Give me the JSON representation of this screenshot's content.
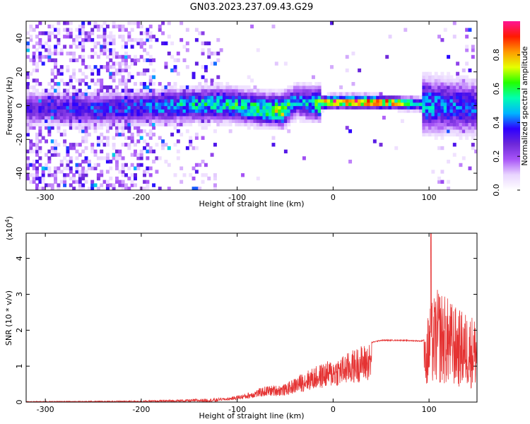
{
  "title": "GN03.2023.237.09.43.G29",
  "chart_data": [
    {
      "type": "heatmap",
      "xlabel": "Height of straight line (km)",
      "ylabel": "Frequency (Hz)",
      "xlim": [
        -320,
        150
      ],
      "ylim": [
        -50,
        50
      ],
      "x_ticks": [
        -300,
        -200,
        -100,
        0,
        100
      ],
      "y_ticks": [
        -40,
        -20,
        0,
        20,
        40
      ],
      "colorbar": {
        "label": "Normalized spectral amplitude",
        "range": [
          0,
          1
        ],
        "ticks": [
          "0.0",
          "0.2",
          "0.4",
          "0.6",
          "0.8"
        ],
        "colors": [
          "#ffffff",
          "#e9d5ff",
          "#a855f7",
          "#6d28d9",
          "#2d00ff",
          "#00b4ff",
          "#00ffb0",
          "#22ff00",
          "#e6ff00",
          "#ff9a00",
          "#ff1a00",
          "#ff1493"
        ]
      },
      "ridge": [
        {
          "x": -310,
          "f": -2,
          "a": 0.35
        },
        {
          "x": -250,
          "f": -3,
          "a": 0.4
        },
        {
          "x": -200,
          "f": -2,
          "a": 0.42
        },
        {
          "x": -170,
          "f": -1,
          "a": 0.5
        },
        {
          "x": -140,
          "f": 0,
          "a": 0.55
        },
        {
          "x": -110,
          "f": 0,
          "a": 0.6
        },
        {
          "x": -90,
          "f": -2,
          "a": 0.6
        },
        {
          "x": -70,
          "f": -3,
          "a": 0.65
        },
        {
          "x": -55,
          "f": -4,
          "a": 0.75
        },
        {
          "x": -40,
          "f": 2,
          "a": 0.45
        },
        {
          "x": -20,
          "f": 0,
          "a": 0.6
        },
        {
          "x": -10,
          "f": 1,
          "a": 0.85
        },
        {
          "x": 0,
          "f": 1.5,
          "a": 0.95
        },
        {
          "x": 30,
          "f": 1.5,
          "a": 0.95
        },
        {
          "x": 60,
          "f": 1,
          "a": 0.85
        },
        {
          "x": 90,
          "f": 0,
          "a": 0.55
        },
        {
          "x": 110,
          "f": -1,
          "a": 0.45
        },
        {
          "x": 150,
          "f": -2,
          "a": 0.4
        }
      ]
    },
    {
      "type": "line",
      "xlabel": "Height of straight line (km)",
      "ylabel": "SNR (10 * v/v)",
      "y_multiplier": "(x10",
      "y_multiplier_exp": "4",
      "y_multiplier_close": ")",
      "xlim": [
        -320,
        150
      ],
      "ylim": [
        0,
        4.7
      ],
      "x_ticks": [
        -300,
        -200,
        -100,
        0,
        100
      ],
      "y_ticks": [
        0,
        1,
        2,
        3,
        4
      ],
      "line_color": "#e53333",
      "envelope": [
        {
          "x": -320,
          "y": 0.02
        },
        {
          "x": -200,
          "y": 0.04
        },
        {
          "x": -150,
          "y": 0.08
        },
        {
          "x": -110,
          "y": 0.12
        },
        {
          "x": -90,
          "y": 0.25
        },
        {
          "x": -70,
          "y": 0.45
        },
        {
          "x": -50,
          "y": 0.5
        },
        {
          "x": -30,
          "y": 0.85
        },
        {
          "x": -10,
          "y": 1.1
        },
        {
          "x": 10,
          "y": 1.3
        },
        {
          "x": 30,
          "y": 1.6
        },
        {
          "x": 50,
          "y": 1.72
        },
        {
          "x": 70,
          "y": 1.72
        },
        {
          "x": 92,
          "y": 1.7
        },
        {
          "x": 96,
          "y": 1.75
        },
        {
          "x": 100,
          "y": 2.7
        },
        {
          "x": 110,
          "y": 3.2
        },
        {
          "x": 130,
          "y": 2.6
        },
        {
          "x": 150,
          "y": 2.4
        }
      ],
      "peak": {
        "x": 102,
        "y": 4.75
      }
    }
  ]
}
